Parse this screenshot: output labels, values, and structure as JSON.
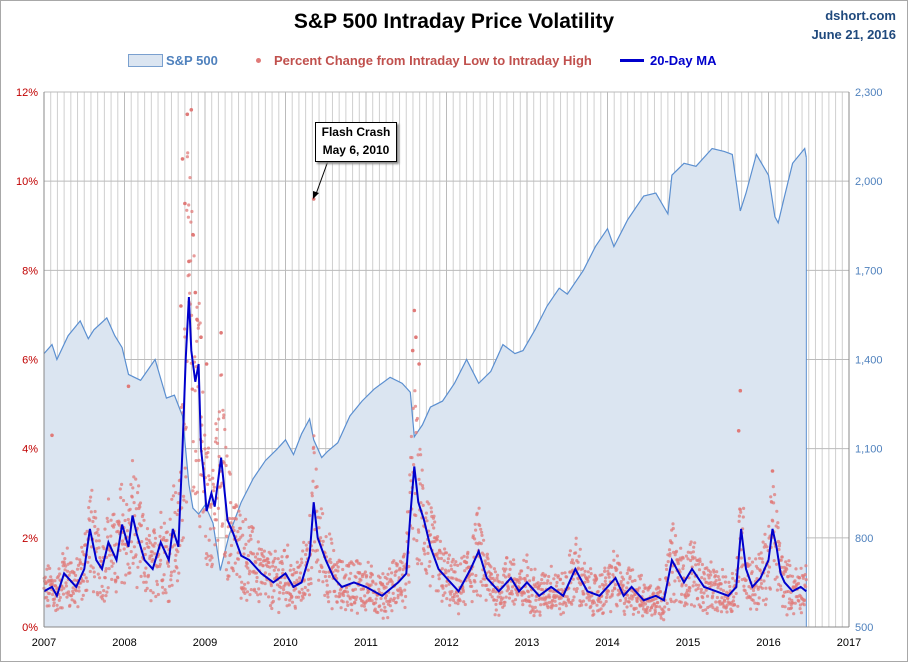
{
  "chart_data": {
    "type": "line",
    "title": "S&P 500 Intraday Price Volatility",
    "source": "dshort.com",
    "date": "June 21, 2016",
    "legend_position": "top",
    "grid": true,
    "x_ticks": [
      "2007",
      "2008",
      "2009",
      "2010",
      "2011",
      "2012",
      "2013",
      "2014",
      "2015",
      "2016",
      "2017"
    ],
    "xlim": [
      2007,
      2017
    ],
    "y_left": {
      "ticks": [
        "0%",
        "2%",
        "4%",
        "6%",
        "8%",
        "10%",
        "12%"
      ],
      "lim": [
        0,
        12
      ]
    },
    "y_right": {
      "ticks": [
        "500",
        "800",
        "1,100",
        "1,400",
        "1,700",
        "2,000",
        "2,300"
      ],
      "lim": [
        500,
        2300
      ]
    },
    "annotation": {
      "lines": [
        "Flash Crash",
        "May 6, 2010"
      ],
      "x": 2010.35,
      "y": 9.6
    },
    "series": [
      {
        "name": "S&P 500",
        "axis": "right",
        "style": "area",
        "color": "#5b8fd0",
        "fill": "#dbe5f1",
        "x": [
          2007.0,
          2007.1,
          2007.16,
          2007.3,
          2007.45,
          2007.55,
          2007.62,
          2007.78,
          2007.88,
          2007.97,
          2008.05,
          2008.2,
          2008.38,
          2008.52,
          2008.62,
          2008.72,
          2008.8,
          2008.85,
          2008.92,
          2009.0,
          2009.1,
          2009.19,
          2009.3,
          2009.45,
          2009.6,
          2009.75,
          2009.9,
          2010.0,
          2010.1,
          2010.2,
          2010.3,
          2010.35,
          2010.45,
          2010.52,
          2010.65,
          2010.8,
          2010.95,
          2011.1,
          2011.3,
          2011.45,
          2011.55,
          2011.6,
          2011.7,
          2011.8,
          2011.95,
          2012.1,
          2012.25,
          2012.4,
          2012.55,
          2012.7,
          2012.85,
          2012.95,
          2013.1,
          2013.25,
          2013.4,
          2013.5,
          2013.7,
          2013.85,
          2014.0,
          2014.08,
          2014.25,
          2014.45,
          2014.6,
          2014.75,
          2014.8,
          2014.95,
          2015.1,
          2015.3,
          2015.45,
          2015.55,
          2015.65,
          2015.72,
          2015.85,
          2016.0,
          2016.08,
          2016.12,
          2016.2,
          2016.3,
          2016.45,
          2016.47
        ],
        "values": [
          1420,
          1450,
          1400,
          1480,
          1530,
          1470,
          1500,
          1540,
          1480,
          1440,
          1350,
          1330,
          1400,
          1270,
          1280,
          1210,
          980,
          900,
          880,
          910,
          850,
          690,
          810,
          920,
          1000,
          1060,
          1100,
          1130,
          1080,
          1150,
          1200,
          1130,
          1070,
          1090,
          1120,
          1210,
          1260,
          1300,
          1340,
          1320,
          1290,
          1140,
          1180,
          1240,
          1260,
          1320,
          1400,
          1320,
          1360,
          1450,
          1420,
          1430,
          1500,
          1580,
          1640,
          1620,
          1700,
          1780,
          1840,
          1780,
          1870,
          1950,
          1960,
          1890,
          2020,
          2060,
          2050,
          2110,
          2100,
          2090,
          1900,
          1960,
          2090,
          2020,
          1880,
          1860,
          1950,
          2060,
          2110,
          2080
        ]
      },
      {
        "name": "Percent Change from Intraday Low to Intraday High",
        "axis": "left",
        "style": "scatter",
        "color": "#e07a78",
        "spikes": [
          {
            "x": 2008.78,
            "y": 11.5
          },
          {
            "x": 2008.83,
            "y": 11.6
          },
          {
            "x": 2008.72,
            "y": 10.5
          },
          {
            "x": 2008.75,
            "y": 9.5
          },
          {
            "x": 2008.85,
            "y": 8.8
          },
          {
            "x": 2008.8,
            "y": 8.2
          },
          {
            "x": 2008.88,
            "y": 7.5
          },
          {
            "x": 2008.7,
            "y": 7.2
          },
          {
            "x": 2008.9,
            "y": 6.9
          },
          {
            "x": 2008.95,
            "y": 6.5
          },
          {
            "x": 2009.02,
            "y": 5.9
          },
          {
            "x": 2009.2,
            "y": 6.6
          },
          {
            "x": 2007.1,
            "y": 4.3
          },
          {
            "x": 2008.05,
            "y": 5.4
          },
          {
            "x": 2010.35,
            "y": 9.6
          },
          {
            "x": 2011.6,
            "y": 7.1
          },
          {
            "x": 2011.62,
            "y": 6.5
          },
          {
            "x": 2011.58,
            "y": 6.2
          },
          {
            "x": 2011.66,
            "y": 5.9
          },
          {
            "x": 2015.65,
            "y": 5.3
          },
          {
            "x": 2015.63,
            "y": 4.4
          },
          {
            "x": 2016.05,
            "y": 3.5
          }
        ]
      },
      {
        "name": "20-Day MA",
        "axis": "left",
        "style": "line",
        "color": "#0000cc",
        "x": [
          2007.0,
          2007.1,
          2007.16,
          2007.25,
          2007.4,
          2007.5,
          2007.57,
          2007.65,
          2007.72,
          2007.8,
          2007.9,
          2007.97,
          2008.05,
          2008.1,
          2008.15,
          2008.25,
          2008.35,
          2008.45,
          2008.55,
          2008.6,
          2008.67,
          2008.72,
          2008.76,
          2008.8,
          2008.83,
          2008.88,
          2008.92,
          2008.95,
          2008.98,
          2009.02,
          2009.08,
          2009.12,
          2009.2,
          2009.28,
          2009.35,
          2009.45,
          2009.55,
          2009.7,
          2009.85,
          2010.0,
          2010.1,
          2010.2,
          2010.3,
          2010.35,
          2010.4,
          2010.5,
          2010.6,
          2010.7,
          2010.85,
          2011.0,
          2011.2,
          2011.4,
          2011.5,
          2011.55,
          2011.6,
          2011.65,
          2011.72,
          2011.8,
          2011.9,
          2012.0,
          2012.15,
          2012.3,
          2012.4,
          2012.5,
          2012.65,
          2012.8,
          2012.9,
          2013.0,
          2013.15,
          2013.3,
          2013.45,
          2013.6,
          2013.75,
          2013.9,
          2014.0,
          2014.1,
          2014.2,
          2014.3,
          2014.45,
          2014.6,
          2014.7,
          2014.8,
          2014.95,
          2015.05,
          2015.2,
          2015.35,
          2015.5,
          2015.6,
          2015.66,
          2015.72,
          2015.8,
          2015.9,
          2016.0,
          2016.05,
          2016.1,
          2016.15,
          2016.2,
          2016.3,
          2016.4,
          2016.47
        ],
        "values": [
          0.8,
          0.9,
          0.7,
          1.2,
          0.9,
          1.3,
          2.2,
          1.5,
          1.3,
          1.9,
          1.5,
          2.3,
          1.8,
          2.5,
          2.1,
          1.5,
          1.3,
          1.9,
          1.5,
          2.2,
          1.8,
          4.0,
          6.0,
          7.4,
          6.2,
          5.5,
          5.9,
          4.0,
          3.5,
          2.6,
          3.0,
          2.7,
          3.8,
          2.4,
          2.1,
          1.6,
          1.5,
          1.2,
          1.0,
          1.2,
          0.9,
          1.0,
          1.6,
          2.8,
          2.0,
          1.5,
          1.1,
          0.9,
          1.0,
          0.9,
          0.7,
          1.0,
          1.2,
          2.5,
          3.6,
          2.8,
          2.4,
          1.8,
          1.3,
          1.1,
          0.8,
          1.3,
          1.7,
          1.1,
          0.8,
          1.1,
          0.8,
          1.0,
          0.7,
          0.9,
          0.7,
          1.3,
          0.8,
          0.7,
          0.9,
          1.1,
          0.7,
          0.9,
          0.6,
          0.7,
          0.6,
          1.5,
          1.0,
          1.3,
          0.9,
          0.8,
          0.7,
          0.9,
          2.2,
          1.3,
          0.9,
          1.1,
          1.5,
          2.2,
          1.8,
          1.2,
          1.0,
          0.8,
          0.9,
          0.8
        ]
      }
    ]
  }
}
